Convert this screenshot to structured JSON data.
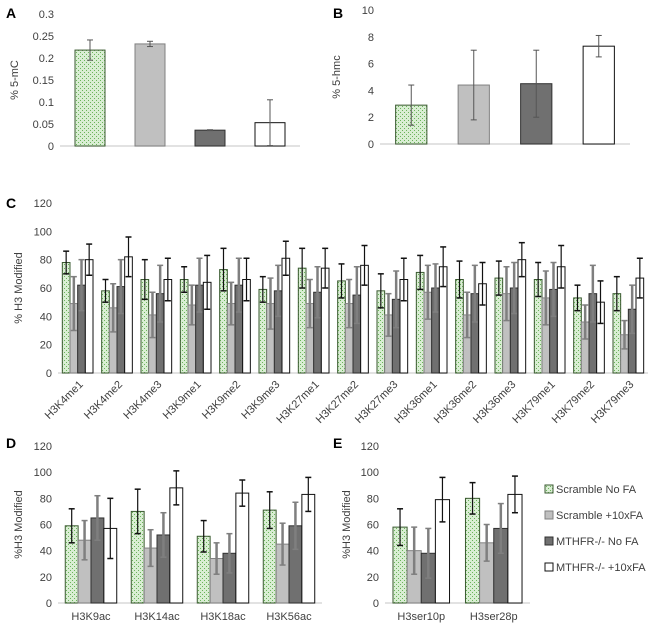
{
  "colors": {
    "scramble_no_fa_fill": "#c9e6c0",
    "scramble_no_fa_dot": "#6bb35a",
    "scramble_10xfa": "#c0c0c0",
    "mthfr_no_fa": "#707070",
    "mthfr_10xfa": "#ffffff",
    "bar_stroke": "#404040",
    "axis": "#d9d9d9",
    "errorbar_dark": "#111111",
    "errorbar_grey": "#7f7f7f"
  },
  "legend": {
    "entries": [
      "Scramble No FA",
      "Scramble +10xFA",
      "MTHFR-/- No FA",
      "MTHFR-/- +10xFA"
    ],
    "placement": "right"
  },
  "chart_data": [
    {
      "panel": "A",
      "type": "bar",
      "title": "",
      "xlabel": "",
      "ylabel": "% 5-mC",
      "ylim": [
        0,
        0.3
      ],
      "yticks": [
        0,
        0.05,
        0.1,
        0.15,
        0.2,
        0.25,
        0.3
      ],
      "ytick_labels": [
        "0",
        "0.05",
        "0.1",
        "0.15",
        "0.2",
        "0.25",
        "0.3"
      ],
      "categories": [
        ""
      ],
      "series": [
        {
          "name": "Scramble No FA",
          "values": [
            0.218
          ],
          "errors": [
            0.023
          ]
        },
        {
          "name": "Scramble +10xFA",
          "values": [
            0.232
          ],
          "errors": [
            0.006
          ]
        },
        {
          "name": "MTHFR-/- No FA",
          "values": [
            0.036
          ],
          "errors": [
            0.001
          ]
        },
        {
          "name": "MTHFR-/- +10xFA",
          "values": [
            0.053
          ],
          "errors": [
            0.052
          ]
        }
      ]
    },
    {
      "panel": "B",
      "type": "bar",
      "title": "",
      "xlabel": "",
      "ylabel": "% 5-hmc",
      "ylim": [
        0,
        10
      ],
      "yticks": [
        0,
        2,
        4,
        6,
        8,
        10
      ],
      "ytick_labels": [
        "0",
        "2",
        "4",
        "6",
        "8",
        "10"
      ],
      "categories": [
        ""
      ],
      "series": [
        {
          "name": "Scramble No FA",
          "values": [
            2.9
          ],
          "errors": [
            1.5
          ]
        },
        {
          "name": "Scramble +10xFA",
          "values": [
            4.4
          ],
          "errors": [
            2.6
          ]
        },
        {
          "name": "MTHFR-/- No FA",
          "values": [
            4.5
          ],
          "errors": [
            2.5
          ]
        },
        {
          "name": "MTHFR-/- +10xFA",
          "values": [
            7.3
          ],
          "errors": [
            0.8
          ]
        }
      ]
    },
    {
      "panel": "C",
      "type": "bar",
      "title": "",
      "xlabel": "",
      "ylabel": "% H3 Modified",
      "ylim": [
        0,
        120
      ],
      "yticks": [
        0,
        20,
        40,
        60,
        80,
        100,
        120
      ],
      "ytick_labels": [
        "0",
        "20",
        "40",
        "60",
        "80",
        "100",
        "120"
      ],
      "categories": [
        "H3K4me1",
        "H3K4me2",
        "H3K4me3",
        "H3K9me1",
        "H3K9me2",
        "H3K9me3",
        "H3K27me1",
        "H3K27me2",
        "H3K27me3",
        "H3K36me1",
        "H3K36me2",
        "H3K36me3",
        "H3K79me1",
        "H3K79me2",
        "H3K79me3"
      ],
      "series": [
        {
          "name": "Scramble No FA",
          "values": [
            78,
            58,
            66,
            66,
            73,
            59,
            74,
            65,
            58,
            71,
            66,
            67,
            66,
            53,
            56
          ],
          "errors": [
            8,
            8,
            14,
            9,
            15,
            9,
            14,
            12,
            12,
            12,
            13,
            12,
            12,
            9,
            12
          ]
        },
        {
          "name": "Scramble +10xFA",
          "values": [
            49,
            46,
            41,
            48,
            49,
            49,
            49,
            49,
            41,
            57,
            41,
            56,
            53,
            36,
            27
          ],
          "errors": [
            19,
            17,
            16,
            14,
            15,
            18,
            17,
            17,
            15,
            19,
            16,
            19,
            19,
            12,
            10
          ]
        },
        {
          "name": "MTHFR-/- No FA",
          "values": [
            62,
            61,
            56,
            62,
            62,
            58,
            57,
            55,
            52,
            60,
            56,
            60,
            59,
            56,
            45
          ],
          "errors": [
            18,
            19,
            20,
            19,
            19,
            18,
            18,
            20,
            20,
            17,
            20,
            18,
            19,
            20,
            17
          ]
        },
        {
          "name": "MTHFR-/- +10xFA",
          "values": [
            80,
            82,
            66,
            64,
            66,
            81,
            74,
            76,
            66,
            75,
            63,
            80,
            75,
            50,
            67
          ],
          "errors": [
            11,
            14,
            15,
            19,
            15,
            12,
            14,
            14,
            15,
            14,
            15,
            12,
            15,
            15,
            14
          ]
        }
      ]
    },
    {
      "panel": "D",
      "type": "bar",
      "title": "",
      "xlabel": "",
      "ylabel": "%H3 Modified",
      "ylim": [
        0,
        120
      ],
      "yticks": [
        0,
        20,
        40,
        60,
        80,
        100,
        120
      ],
      "ytick_labels": [
        "0",
        "20",
        "40",
        "60",
        "80",
        "100",
        "120"
      ],
      "categories": [
        "H3K9ac",
        "H3K14ac",
        "H3K18ac",
        "H3K56ac"
      ],
      "series": [
        {
          "name": "Scramble No FA",
          "values": [
            59,
            70,
            51,
            71
          ],
          "errors": [
            13,
            17,
            12,
            14
          ]
        },
        {
          "name": "Scramble +10xFA",
          "values": [
            48,
            42,
            34,
            45
          ],
          "errors": [
            15,
            14,
            12,
            16
          ]
        },
        {
          "name": "MTHFR-/- No FA",
          "values": [
            65,
            52,
            38,
            59
          ],
          "errors": [
            17,
            17,
            15,
            18
          ]
        },
        {
          "name": "MTHFR-/- +10xFA",
          "values": [
            57,
            88,
            84,
            83
          ],
          "errors": [
            23,
            13,
            10,
            13
          ]
        }
      ]
    },
    {
      "panel": "E",
      "type": "bar",
      "title": "",
      "xlabel": "",
      "ylabel": "%H3 Modified",
      "ylim": [
        0,
        120
      ],
      "yticks": [
        0,
        20,
        40,
        60,
        80,
        100,
        120
      ],
      "ytick_labels": [
        "0",
        "20",
        "40",
        "60",
        "80",
        "100",
        "120"
      ],
      "categories": [
        "H3ser10p",
        "H3ser28p"
      ],
      "series": [
        {
          "name": "Scramble No FA",
          "values": [
            58,
            80
          ],
          "errors": [
            14,
            12
          ]
        },
        {
          "name": "Scramble +10xFA",
          "values": [
            40,
            46
          ],
          "errors": [
            18,
            14
          ]
        },
        {
          "name": "MTHFR-/- No FA",
          "values": [
            38,
            57
          ],
          "errors": [
            19,
            19
          ]
        },
        {
          "name": "MTHFR-/- +10xFA",
          "values": [
            79,
            83
          ],
          "errors": [
            17,
            14
          ]
        }
      ]
    }
  ]
}
